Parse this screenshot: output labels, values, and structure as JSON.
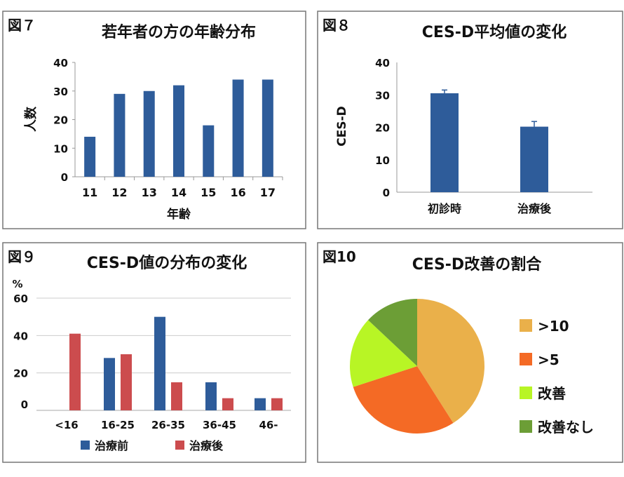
{
  "chart_data": [
    {
      "type": "bar",
      "figure_label": "図７",
      "title": "若年者の方の年齢分布",
      "xlabel": "年齢",
      "ylabel": "人数",
      "categories": [
        "11",
        "12",
        "13",
        "14",
        "15",
        "16",
        "17"
      ],
      "values": [
        14,
        29,
        30,
        32,
        18,
        34,
        34
      ],
      "ylim": [
        0,
        40
      ],
      "yticks": [
        0,
        10,
        20,
        30,
        40
      ],
      "grid": false,
      "color": "#2e5c9a"
    },
    {
      "type": "bar",
      "figure_label": "図８",
      "title": "CES-D平均値の変化",
      "xlabel": "",
      "ylabel": "CES-D",
      "categories": [
        "初診時",
        "治療後"
      ],
      "values": [
        30.5,
        20.2
      ],
      "error_upper": [
        31.5,
        21.8
      ],
      "ylim": [
        0,
        40
      ],
      "yticks": [
        0,
        10,
        20,
        30,
        40
      ],
      "grid": false,
      "color": "#2e5c9a"
    },
    {
      "type": "bar",
      "figure_label": "図９",
      "title": "CES-D値の分布の変化",
      "ylabel": "%",
      "categories": [
        "<16",
        "16-25",
        "26-35",
        "36-45",
        "46-"
      ],
      "series": [
        {
          "name": "治療前",
          "values": [
            0,
            28,
            50,
            15,
            6.5
          ],
          "color": "#2e5c9a"
        },
        {
          "name": "治療後",
          "values": [
            41,
            30,
            15,
            6.5,
            6.5
          ],
          "color": "#cc4c4e"
        }
      ],
      "ylim": [
        0,
        60
      ],
      "yticks": [
        0,
        20,
        40,
        60
      ],
      "grid": true,
      "legend": "bottom"
    },
    {
      "type": "pie",
      "figure_label": "図10",
      "title": "CES-D改善の割合",
      "slices": [
        {
          "label": ">10",
          "value": 41,
          "color": "#eab04a"
        },
        {
          "label": ">5",
          "value": 29,
          "color": "#f46a25"
        },
        {
          "label": "改善",
          "value": 17,
          "color": "#b8f525"
        },
        {
          "label": "改善なし",
          "value": 13,
          "color": "#6c9e36"
        }
      ],
      "legend": "right"
    }
  ]
}
